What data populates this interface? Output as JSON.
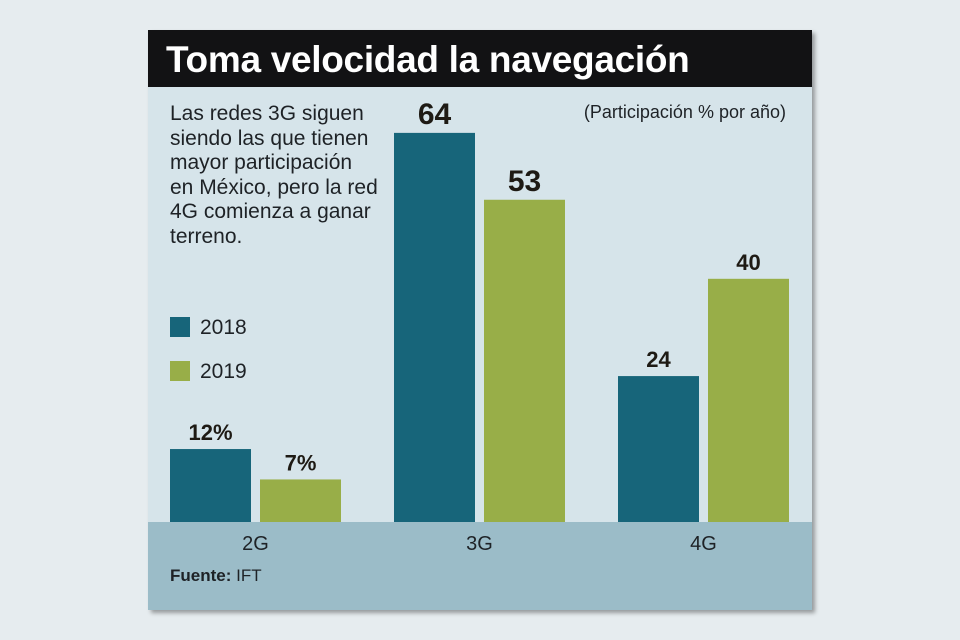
{
  "title": "Toma velocidad la navegación",
  "description": "Las redes 3G siguen siendo las que tienen mayor participación en México, pero la red 4G comienza a ganar terreno.",
  "unit_note": "(Participación % por año)",
  "source": {
    "label": "Fuente:",
    "value": "IFT"
  },
  "colors": {
    "2018": "#17657a",
    "2019": "#98ae48",
    "title_bg": "#121214",
    "panel_bg": "#d6e4ea",
    "axis_band": "#9bbcc8"
  },
  "chart_data": {
    "type": "bar",
    "title": "Toma velocidad la navegación",
    "categories": [
      "2G",
      "3G",
      "4G"
    ],
    "series": [
      {
        "name": "2018",
        "values": [
          12,
          64,
          24
        ],
        "labels": [
          "12%",
          "64",
          "24"
        ]
      },
      {
        "name": "2019",
        "values": [
          7,
          53,
          40
        ],
        "labels": [
          "7%",
          "53",
          "40"
        ]
      }
    ],
    "ylim": [
      0,
      64
    ],
    "grid": false,
    "legend_position": "left"
  }
}
